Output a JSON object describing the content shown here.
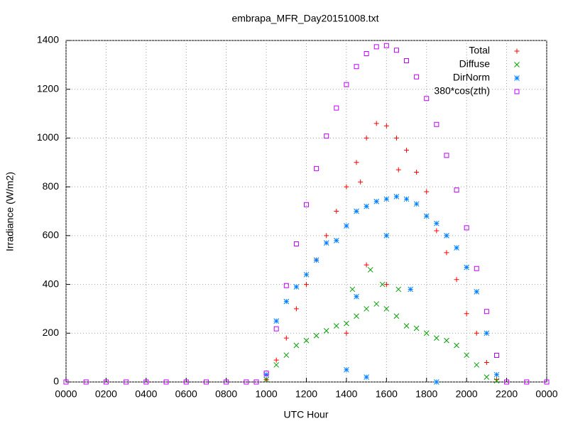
{
  "chart_data": {
    "type": "scatter",
    "title": "embrapa_MFR_Day20151008.txt",
    "x_label": "UTC Hour",
    "y_label": "Irradiance (W/m2)",
    "xlim": [
      0,
      24
    ],
    "xticks": [
      {
        "value": 0,
        "label": "0000"
      },
      {
        "value": 2,
        "label": "0200"
      },
      {
        "value": 4,
        "label": "0400"
      },
      {
        "value": 6,
        "label": "0600"
      },
      {
        "value": 8,
        "label": "0800"
      },
      {
        "value": 10,
        "label": "1000"
      },
      {
        "value": 12,
        "label": "1200"
      },
      {
        "value": 14,
        "label": "1400"
      },
      {
        "value": 16,
        "label": "1600"
      },
      {
        "value": 18,
        "label": "1800"
      },
      {
        "value": 20,
        "label": "2000"
      },
      {
        "value": 22,
        "label": "2200"
      },
      {
        "value": 24,
        "label": "0000"
      }
    ],
    "ylim": [
      0,
      1400
    ],
    "yticks": [
      0,
      200,
      400,
      600,
      800,
      1000,
      1200,
      1400
    ],
    "grid": true,
    "legend": "upper-right",
    "series": [
      {
        "name": "Total",
        "color": "#ff0000",
        "marker": "plus",
        "x": [
          10,
          10.5,
          11,
          11.5,
          12,
          12.5,
          13,
          13.5,
          14,
          14.5,
          15,
          15.5,
          16,
          16.5,
          17,
          17.5,
          18,
          18.5,
          19,
          19.5,
          20,
          20.5,
          21,
          21.5,
          14,
          15,
          16,
          14.7,
          16.6
        ],
        "values": [
          10,
          90,
          180,
          300,
          400,
          500,
          600,
          700,
          800,
          900,
          1000,
          1060,
          1050,
          1000,
          950,
          860,
          780,
          620,
          530,
          420,
          280,
          200,
          80,
          10,
          200,
          480,
          400,
          820,
          870
        ]
      },
      {
        "name": "Diffuse",
        "color": "#00a000",
        "marker": "cross",
        "x": [
          10,
          10.5,
          11,
          11.5,
          12,
          12.5,
          13,
          13.5,
          14,
          14.5,
          15,
          15.5,
          16,
          16.5,
          17,
          17.5,
          18,
          18.5,
          19,
          19.5,
          20,
          20.5,
          21,
          21.5,
          15.2,
          15.8,
          16.6,
          14.3
        ],
        "values": [
          10,
          70,
          110,
          150,
          170,
          190,
          210,
          230,
          240,
          270,
          300,
          320,
          300,
          270,
          230,
          220,
          200,
          180,
          170,
          150,
          110,
          70,
          20,
          5,
          460,
          400,
          380,
          380
        ]
      },
      {
        "name": "DirNorm",
        "color": "#0080ff",
        "marker": "star",
        "x": [
          10,
          10.5,
          11,
          11.5,
          12,
          12.5,
          13,
          13.5,
          14,
          14.5,
          15,
          15.5,
          16,
          16.5,
          17,
          17.5,
          18,
          18.5,
          19,
          19.5,
          20,
          20.5,
          21,
          21.5,
          14,
          15,
          16,
          14.5,
          18.5,
          17.2
        ],
        "values": [
          30,
          250,
          330,
          390,
          440,
          500,
          570,
          580,
          640,
          700,
          720,
          740,
          750,
          760,
          750,
          730,
          680,
          650,
          600,
          550,
          470,
          370,
          200,
          30,
          50,
          20,
          600,
          350,
          0,
          380
        ]
      },
      {
        "name": "380*cos(zth)",
        "color": "#c000ff",
        "marker": "square",
        "x": [
          0,
          1,
          2,
          3,
          4,
          5,
          6,
          7,
          8,
          9,
          9.5,
          10,
          10.5,
          11,
          11.5,
          12,
          12.5,
          13,
          13.5,
          14,
          14.5,
          15,
          15.5,
          16,
          16.5,
          17,
          17.5,
          18,
          18.5,
          19,
          19.5,
          20,
          20.5,
          21,
          21.5,
          22,
          23,
          24
        ],
        "values": [
          0,
          0,
          0,
          0,
          0,
          0,
          0,
          0,
          0,
          0,
          0,
          36,
          218,
          395,
          566,
          727,
          875,
          1008,
          1123,
          1219,
          1293,
          1346,
          1374,
          1379,
          1360,
          1317,
          1251,
          1162,
          1056,
          929,
          787,
          632,
          465,
          289,
          109,
          0,
          0,
          0
        ]
      }
    ]
  }
}
